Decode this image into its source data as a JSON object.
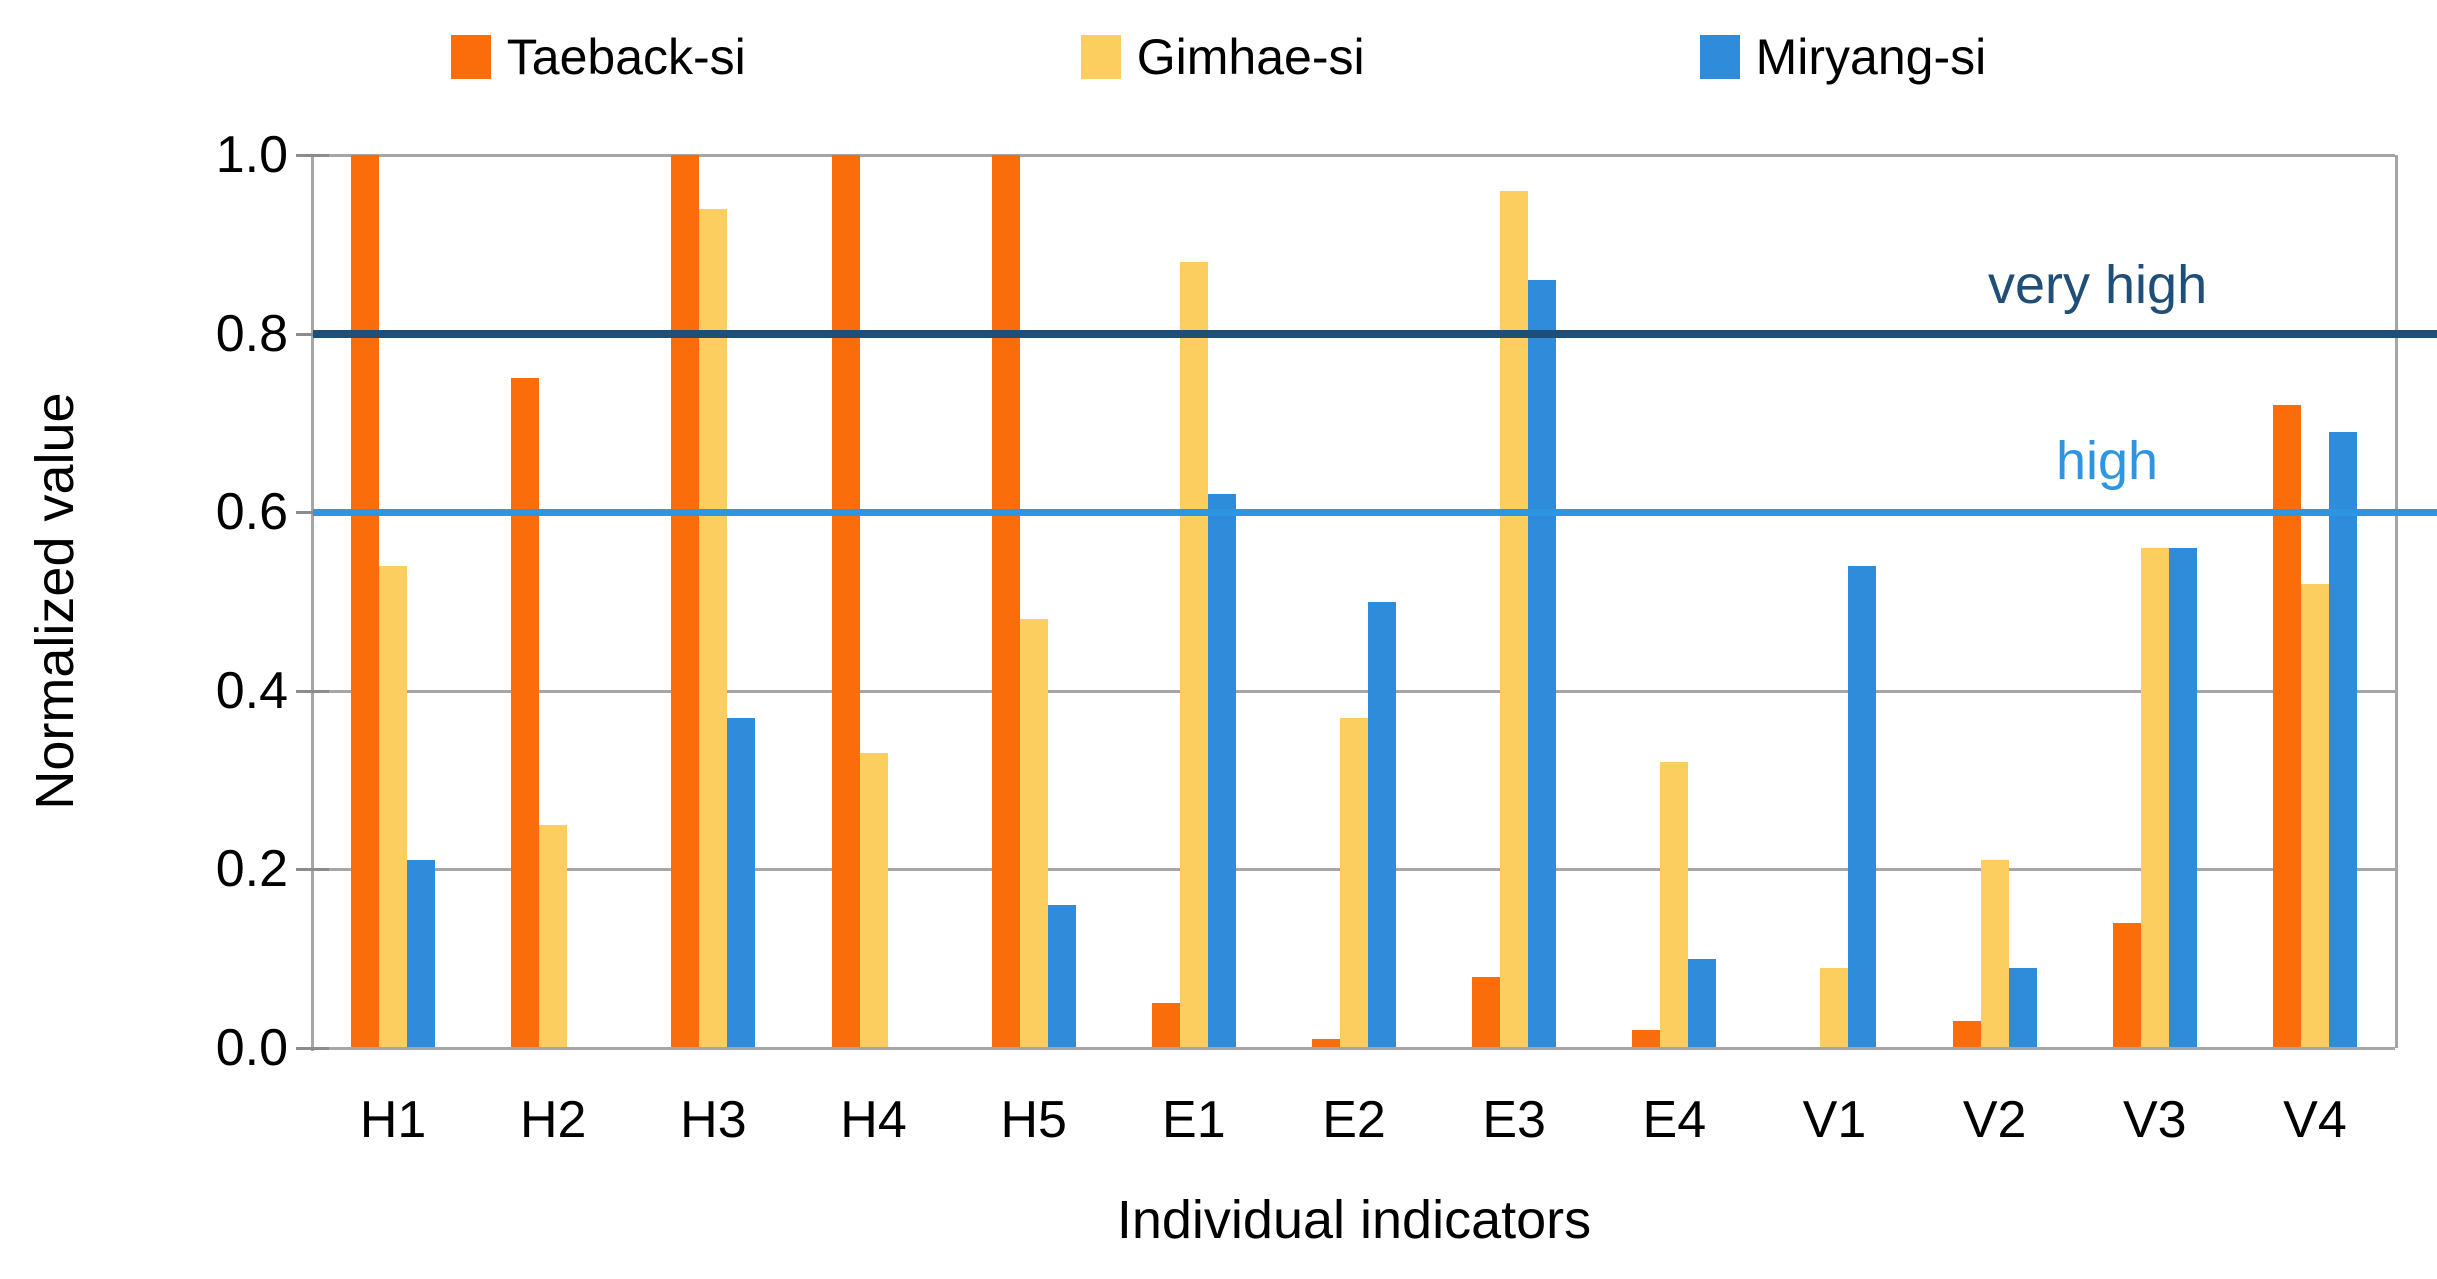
{
  "chart_data": {
    "type": "bar",
    "categories": [
      "H1",
      "H2",
      "H3",
      "H4",
      "H5",
      "E1",
      "E2",
      "E3",
      "E4",
      "V1",
      "V2",
      "V3",
      "V4"
    ],
    "series": [
      {
        "name": "Taeback-si",
        "color": "#FB6C0A",
        "values": [
          1.0,
          0.75,
          1.0,
          1.0,
          1.0,
          0.05,
          0.01,
          0.08,
          0.02,
          null,
          0.03,
          0.14,
          0.72
        ]
      },
      {
        "name": "Gimhae-si",
        "color": "#FCCD5F",
        "values": [
          0.54,
          0.25,
          0.94,
          0.33,
          0.48,
          0.88,
          0.37,
          0.96,
          0.32,
          0.09,
          0.21,
          0.56,
          0.52
        ]
      },
      {
        "name": "Miryang-si",
        "color": "#2E8CDB",
        "values": [
          0.21,
          null,
          0.37,
          null,
          0.16,
          0.62,
          0.5,
          0.86,
          0.1,
          0.54,
          0.09,
          0.56,
          0.69
        ]
      }
    ],
    "xlabel": "Individual indicators",
    "ylabel": "Normalized value",
    "ylim": [
      0.0,
      1.0
    ],
    "yticks": [
      {
        "label": "1.0",
        "value": 1.0
      },
      {
        "label": "0.8",
        "value": 0.8
      },
      {
        "label": "0.6",
        "value": 0.6
      },
      {
        "label": "0.4",
        "value": 0.4
      },
      {
        "label": "0.2",
        "value": 0.2
      },
      {
        "label": "0.0",
        "value": 0.0
      }
    ],
    "grid": true,
    "gridline_color": "#A6A6A6",
    "legend_position": "top",
    "reference_lines": [
      {
        "label": "very high",
        "value": 0.8,
        "color": "#1F4E79",
        "thickness": 8
      },
      {
        "label": "high",
        "value": 0.6,
        "color": "#2E95E2",
        "thickness": 7
      }
    ]
  }
}
